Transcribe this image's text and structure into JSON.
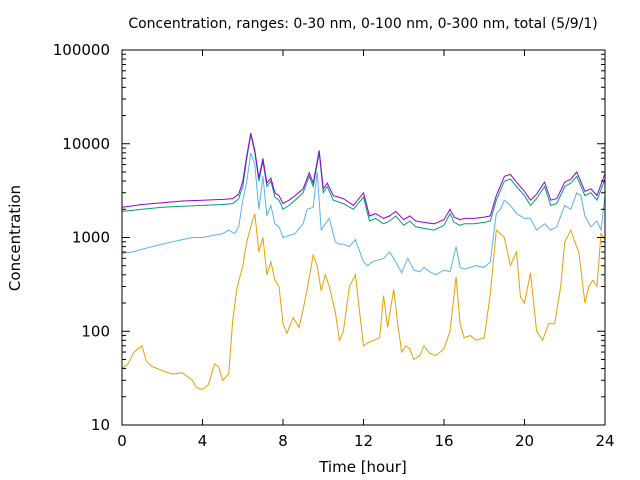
{
  "chart_data": {
    "type": "line",
    "title": "Concentration, ranges: 0-30 nm, 0-100 nm, 0-300 nm, total (5/9/1)",
    "xlabel": "Time [hour]",
    "ylabel": "Concentration",
    "xlim": [
      0,
      24
    ],
    "ylim": [
      10,
      100000
    ],
    "y_scale": "log",
    "grid": false,
    "legend": "none",
    "x_ticks": [
      0,
      4,
      8,
      12,
      16,
      20,
      24
    ],
    "x_tick_labels": [
      "0",
      "4",
      "8",
      "12",
      "16",
      "20",
      "24"
    ],
    "y_ticks": [
      10,
      100,
      1000,
      10000,
      100000
    ],
    "y_tick_labels": [
      "10",
      "100",
      "1000",
      "10000",
      "100000"
    ],
    "series": [
      {
        "color": "#e69f00",
        "x": [
          0,
          0.3,
          0.6,
          0.8,
          1.0,
          1.2,
          1.5,
          2.0,
          2.5,
          3.0,
          3.5,
          3.7,
          4.0,
          4.3,
          4.6,
          4.8,
          5.0,
          5.3,
          5.5,
          5.7,
          6.0,
          6.2,
          6.4,
          6.6,
          6.8,
          7.0,
          7.2,
          7.4,
          7.6,
          7.8,
          8.0,
          8.2,
          8.5,
          8.8,
          9.0,
          9.2,
          9.5,
          9.7,
          9.9,
          10.1,
          10.3,
          10.6,
          10.8,
          11.0,
          11.3,
          11.6,
          12.0,
          12.2,
          12.5,
          12.8,
          13.0,
          13.2,
          13.5,
          13.7,
          13.9,
          14.1,
          14.3,
          14.5,
          14.8,
          15.0,
          15.3,
          15.6,
          16.0,
          16.3,
          16.6,
          16.8,
          17.0,
          17.3,
          17.6,
          18.0,
          18.3,
          18.6,
          18.8,
          19.0,
          19.3,
          19.6,
          19.8,
          20.0,
          20.3,
          20.6,
          20.9,
          21.2,
          21.5,
          21.8,
          22.0,
          22.3,
          22.5,
          22.7,
          23.0,
          23.2,
          23.4,
          23.6,
          23.8,
          24.0
        ],
        "values": [
          40,
          45,
          60,
          65,
          70,
          48,
          42,
          38,
          35,
          36,
          30,
          25,
          24,
          27,
          45,
          42,
          30,
          35,
          130,
          280,
          500,
          900,
          1300,
          1800,
          700,
          1000,
          400,
          550,
          350,
          300,
          120,
          95,
          140,
          110,
          170,
          280,
          650,
          500,
          270,
          400,
          300,
          160,
          80,
          100,
          300,
          400,
          70,
          75,
          80,
          85,
          240,
          110,
          280,
          120,
          60,
          70,
          65,
          50,
          55,
          70,
          58,
          55,
          65,
          100,
          380,
          120,
          85,
          90,
          80,
          85,
          250,
          1200,
          1100,
          1000,
          500,
          700,
          230,
          200,
          420,
          100,
          80,
          120,
          120,
          300,
          900,
          1200,
          900,
          700,
          200,
          300,
          350,
          300,
          1100,
          950
        ]
      },
      {
        "color": "#56b4e9",
        "x": [
          0,
          0.5,
          1.0,
          1.5,
          2.0,
          2.5,
          3.0,
          3.5,
          4.0,
          4.5,
          5.0,
          5.3,
          5.6,
          5.8,
          6.0,
          6.2,
          6.4,
          6.6,
          6.8,
          7.0,
          7.2,
          7.4,
          7.6,
          7.8,
          8.0,
          8.3,
          8.6,
          9.0,
          9.2,
          9.5,
          9.7,
          9.9,
          10.1,
          10.3,
          10.6,
          10.8,
          11.0,
          11.3,
          11.6,
          12.0,
          12.2,
          12.5,
          12.8,
          13.0,
          13.3,
          13.6,
          13.9,
          14.2,
          14.5,
          14.8,
          15.0,
          15.3,
          15.6,
          16.0,
          16.3,
          16.6,
          16.8,
          17.0,
          17.3,
          17.6,
          18.0,
          18.3,
          18.6,
          18.8,
          19.0,
          19.3,
          19.6,
          20.0,
          20.3,
          20.6,
          21.0,
          21.3,
          21.6,
          22.0,
          22.3,
          22.6,
          22.8,
          23.0,
          23.3,
          23.6,
          23.8,
          24.0
        ],
        "values": [
          680,
          700,
          750,
          800,
          850,
          900,
          950,
          1000,
          1000,
          1050,
          1100,
          1200,
          1100,
          1300,
          2500,
          4000,
          8000,
          6000,
          2000,
          4500,
          1700,
          2200,
          1400,
          1300,
          1000,
          1050,
          1100,
          1400,
          2000,
          2100,
          5000,
          1200,
          1400,
          1600,
          900,
          850,
          850,
          800,
          950,
          550,
          500,
          560,
          580,
          600,
          700,
          550,
          420,
          600,
          450,
          430,
          480,
          430,
          400,
          450,
          430,
          800,
          480,
          460,
          480,
          500,
          480,
          550,
          1800,
          2000,
          2500,
          2200,
          1800,
          1600,
          1600,
          1200,
          1400,
          1200,
          1300,
          2200,
          2000,
          3000,
          2800,
          1700,
          1300,
          1500,
          1200,
          2800
        ]
      },
      {
        "color": "#009e73",
        "x": [
          0,
          1,
          2,
          3,
          4,
          5,
          5.5,
          5.8,
          6.0,
          6.2,
          6.4,
          6.6,
          6.8,
          7.0,
          7.2,
          7.4,
          7.6,
          7.8,
          8.0,
          8.3,
          8.6,
          9.0,
          9.3,
          9.5,
          9.8,
          10.0,
          10.2,
          10.5,
          11.0,
          11.5,
          12.0,
          12.3,
          12.6,
          13.0,
          13.3,
          13.6,
          14.0,
          14.3,
          14.6,
          15.0,
          15.5,
          16.0,
          16.3,
          16.5,
          16.8,
          17.0,
          17.5,
          18.0,
          18.3,
          18.6,
          19.0,
          19.3,
          19.6,
          20.0,
          20.3,
          20.6,
          21.0,
          21.3,
          21.6,
          22.0,
          22.3,
          22.6,
          23.0,
          23.3,
          23.6,
          24.0
        ],
        "values": [
          1900,
          2000,
          2100,
          2150,
          2200,
          2250,
          2300,
          2600,
          3500,
          7000,
          12500,
          8000,
          4000,
          6500,
          3500,
          4000,
          2700,
          2500,
          2000,
          2200,
          2500,
          3000,
          4500,
          3500,
          8000,
          3000,
          3500,
          2500,
          2300,
          2000,
          2700,
          1500,
          1600,
          1400,
          1500,
          1700,
          1350,
          1500,
          1300,
          1250,
          1200,
          1350,
          1800,
          1450,
          1350,
          1400,
          1400,
          1450,
          1500,
          2500,
          4000,
          4200,
          3500,
          2800,
          2200,
          2600,
          3500,
          2200,
          2300,
          3500,
          3800,
          4500,
          2800,
          3000,
          2500,
          4200
        ]
      },
      {
        "color": "#9400d3",
        "x": [
          0,
          1,
          2,
          3,
          4,
          5,
          5.5,
          5.8,
          6.0,
          6.2,
          6.4,
          6.6,
          6.8,
          7.0,
          7.2,
          7.4,
          7.6,
          7.8,
          8.0,
          8.3,
          8.6,
          9.0,
          9.3,
          9.5,
          9.8,
          10.0,
          10.2,
          10.5,
          11.0,
          11.5,
          12.0,
          12.3,
          12.6,
          13.0,
          13.3,
          13.6,
          14.0,
          14.3,
          14.6,
          15.0,
          15.5,
          16.0,
          16.3,
          16.5,
          16.8,
          17.0,
          17.5,
          18.0,
          18.3,
          18.6,
          19.0,
          19.3,
          19.6,
          20.0,
          20.3,
          20.6,
          21.0,
          21.3,
          21.6,
          22.0,
          22.3,
          22.6,
          23.0,
          23.3,
          23.6,
          24.0
        ],
        "values": [
          2100,
          2250,
          2350,
          2450,
          2500,
          2550,
          2600,
          2900,
          4000,
          7500,
          13000,
          8500,
          4300,
          7000,
          3800,
          4300,
          3000,
          2800,
          2300,
          2500,
          2800,
          3300,
          4900,
          3800,
          8500,
          3300,
          3800,
          2800,
          2600,
          2200,
          3000,
          1700,
          1800,
          1600,
          1700,
          1900,
          1550,
          1700,
          1500,
          1450,
          1400,
          1550,
          2000,
          1650,
          1550,
          1600,
          1600,
          1650,
          1700,
          2800,
          4500,
          4700,
          3900,
          3100,
          2500,
          2900,
          3900,
          2500,
          2600,
          3900,
          4200,
          5000,
          3100,
          3300,
          2800,
          4800
        ]
      }
    ]
  }
}
